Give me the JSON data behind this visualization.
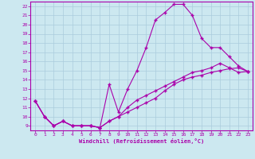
{
  "title": "",
  "xlabel": "Windchill (Refroidissement éolien,°C)",
  "ylabel": "",
  "background_color": "#cce8f0",
  "line_color": "#aa00aa",
  "grid_color": "#aaccdd",
  "xlim": [
    -0.5,
    23.5
  ],
  "ylim": [
    8.5,
    22.5
  ],
  "xticks": [
    0,
    1,
    2,
    3,
    4,
    5,
    6,
    7,
    8,
    9,
    10,
    11,
    12,
    13,
    14,
    15,
    16,
    17,
    18,
    19,
    20,
    21,
    22,
    23
  ],
  "yticks": [
    9,
    10,
    11,
    12,
    13,
    14,
    15,
    16,
    17,
    18,
    19,
    20,
    21,
    22
  ],
  "series1_x": [
    0,
    1,
    2,
    3,
    4,
    5,
    6,
    7,
    8,
    9,
    10,
    11,
    12,
    13,
    14,
    15,
    16,
    17,
    18,
    19,
    20,
    21,
    22,
    23
  ],
  "series1_y": [
    11.7,
    10.0,
    9.0,
    9.5,
    9.0,
    9.0,
    9.0,
    8.8,
    13.5,
    10.5,
    13.0,
    15.0,
    17.5,
    20.5,
    21.3,
    22.2,
    22.2,
    21.0,
    18.5,
    17.5,
    17.5,
    16.5,
    15.5,
    14.9
  ],
  "series2_x": [
    0,
    1,
    2,
    3,
    4,
    5,
    6,
    7,
    8,
    9,
    10,
    11,
    12,
    13,
    14,
    15,
    16,
    17,
    18,
    19,
    20,
    21,
    22,
    23
  ],
  "series2_y": [
    11.7,
    10.0,
    9.0,
    9.5,
    9.0,
    9.0,
    9.0,
    8.8,
    9.5,
    10.0,
    10.5,
    11.0,
    11.5,
    12.0,
    12.8,
    13.5,
    14.0,
    14.3,
    14.5,
    14.8,
    15.0,
    15.2,
    15.3,
    14.9
  ],
  "series3_x": [
    0,
    1,
    2,
    3,
    4,
    5,
    6,
    7,
    8,
    9,
    10,
    11,
    12,
    13,
    14,
    15,
    16,
    17,
    18,
    19,
    20,
    21,
    22,
    23
  ],
  "series3_y": [
    11.7,
    10.0,
    9.0,
    9.5,
    9.0,
    9.0,
    9.0,
    8.8,
    9.5,
    10.0,
    11.0,
    11.8,
    12.3,
    12.8,
    13.3,
    13.8,
    14.3,
    14.8,
    15.0,
    15.3,
    15.8,
    15.3,
    14.8,
    14.9
  ]
}
